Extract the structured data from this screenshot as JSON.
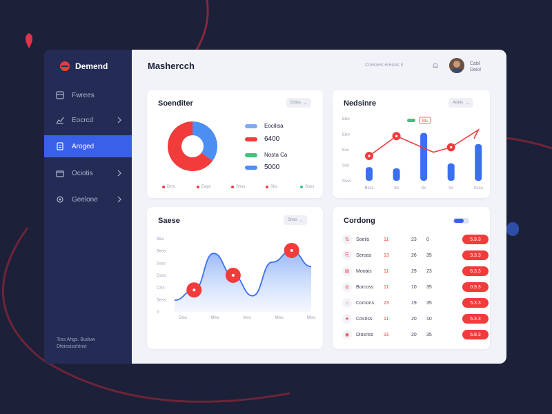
{
  "brand": {
    "name": "Demend"
  },
  "sidebar": {
    "items": [
      {
        "label": "Fwrees",
        "icon": "grid-icon",
        "active": false
      },
      {
        "label": "Eocrcd",
        "icon": "chart-icon",
        "active": false
      },
      {
        "label": "Aroged",
        "icon": "document-icon",
        "active": true
      },
      {
        "label": "Ociotis",
        "icon": "folder-icon",
        "active": false
      },
      {
        "label": "Geelone",
        "icon": "gear-icon",
        "active": false
      }
    ],
    "footer_line1": "Ties Ahgs. Buduw",
    "footer_line2": "Dfeiesisshtnst"
  },
  "header": {
    "title": "Mashercch",
    "search_text": "Cneraes ereoos ir",
    "user_name": "Cabl\nDeiol"
  },
  "donut_card": {
    "title": "Soenditer",
    "ctrl_label": "Ddiss",
    "legend": [
      {
        "label": "Eocilisa",
        "color": "#7fa9f0"
      },
      {
        "label": "6400",
        "color": "#f23b3b"
      },
      {
        "label": "Nosta Ca",
        "color": "#3ec47a"
      },
      {
        "label": "5000",
        "color": "#4d8ef2"
      }
    ],
    "axis_labels": [
      "Drrs",
      "Eeps",
      "Snss",
      "Stis",
      "Snss",
      "Eloe"
    ],
    "axis_marker_colors": [
      "#f23b3b",
      "#f23b3b",
      "#f23b3b",
      "#f23b3b",
      "#3ec47a",
      "#f23b3b"
    ]
  },
  "metrics_card": {
    "title": "Nedsinre",
    "ctrl_label": "Adeis",
    "badge": "Ms"
  },
  "sales_card": {
    "title": "Saese",
    "ctrl_label": "Shss"
  },
  "table_card": {
    "title": "Cordong",
    "rows": [
      {
        "name": "Soeils",
        "c1": "11",
        "c2": "23",
        "c3": "0",
        "value": "5.9.3",
        "icon": "sort-icon"
      },
      {
        "name": "Seroas",
        "c1": "13",
        "c2": "26",
        "c3": "35",
        "value": "3.3.3",
        "icon": "bookmark-icon"
      },
      {
        "name": "Mooais",
        "c1": "11",
        "c2": "29",
        "c3": "23",
        "value": "6.3.3",
        "icon": "doc-icon"
      },
      {
        "name": "Borcoss",
        "c1": "11",
        "c2": "10",
        "c3": "35",
        "value": "0.9.3",
        "icon": "target-icon"
      },
      {
        "name": "Comons",
        "c1": "23",
        "c2": "19",
        "c3": "35",
        "value": "5.3.3",
        "icon": "tag-icon"
      },
      {
        "name": "Cosriss",
        "c1": "11",
        "c2": "20",
        "c3": "10",
        "value": "6.3.3",
        "icon": "lock-icon"
      },
      {
        "name": "Diosriss",
        "c1": "31",
        "c2": "20",
        "c3": "35",
        "value": "6.8.3",
        "icon": "user-icon"
      }
    ]
  },
  "colors": {
    "accent": "#3a5fe8",
    "red": "#f23b3b",
    "green": "#3ec47a",
    "blue": "#4d8ef2"
  },
  "chart_data": [
    {
      "type": "pie",
      "title": "Soenditer",
      "labels": [
        "Eocilisa",
        "6400"
      ],
      "values": [
        35,
        65
      ],
      "colors": [
        "#4d8ef2",
        "#f23b3b"
      ],
      "donut": true
    },
    {
      "type": "bar",
      "title": "Nedsinre",
      "categories": [
        "Bsss",
        "Ss",
        "Ss",
        "Ss",
        "Ssss"
      ],
      "y_ticks": [
        "Ebe",
        "Eeo",
        "Ess",
        "Sss",
        "Ssss"
      ],
      "bar_values": [
        22,
        20,
        77,
        28,
        59
      ],
      "line_values": [
        40,
        72,
        46,
        54,
        82
      ],
      "line_markers": [
        0,
        1,
        3
      ],
      "bar_color": "#3a6ff2",
      "line_color": "#f23b3b",
      "ylim": [
        0,
        100
      ]
    },
    {
      "type": "area",
      "title": "Saese",
      "categories": [
        "Dlss",
        "Mlss",
        "Mss",
        "Mlss",
        "Mlss"
      ],
      "y_ticks": [
        "9lss",
        "9eos",
        "Ssss",
        "Dsss",
        "Clss",
        "Sess",
        "0"
      ],
      "x": [
        0,
        1,
        2,
        3,
        4,
        5,
        6,
        7
      ],
      "values": [
        16,
        30,
        80,
        50,
        22,
        68,
        84,
        62
      ],
      "markers": [
        1,
        3,
        6
      ],
      "color": "#3a6ff2",
      "marker_color": "#f23b3b",
      "ylim": [
        0,
        100
      ]
    }
  ]
}
